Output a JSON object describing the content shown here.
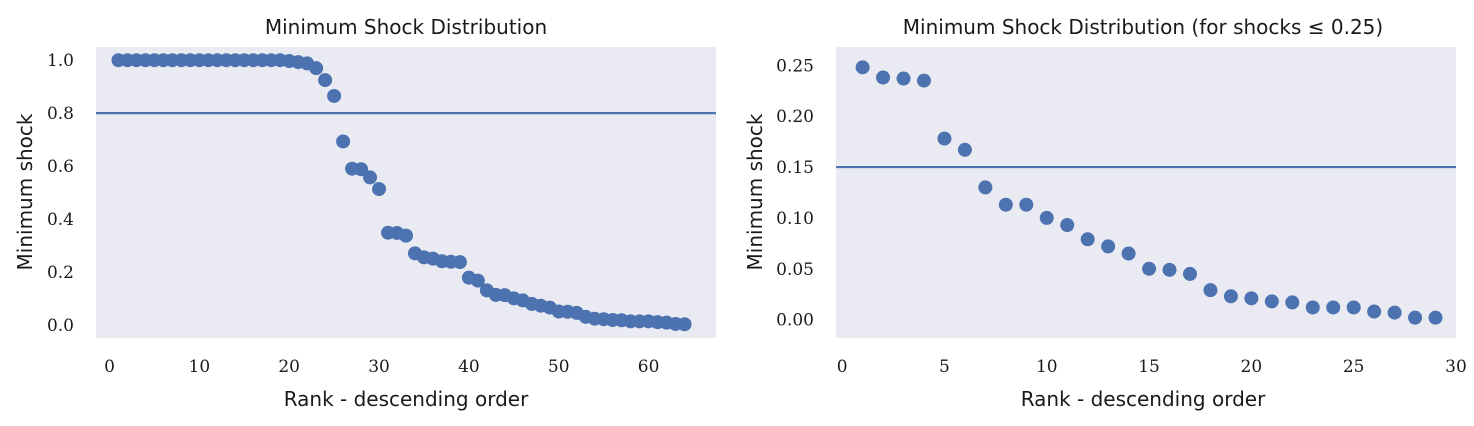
{
  "colors": {
    "plot_background": "#eaeaf2",
    "marker": "#4c72b0",
    "threshold_line": "#4c72b0",
    "text": "#1a1a1a"
  },
  "chart_data": [
    {
      "type": "scatter",
      "title": "Minimum Shock Distribution",
      "xlabel": "Rank - descending order",
      "ylabel": "Minimum shock",
      "xlim": [
        -1.5,
        67.5
      ],
      "ylim": [
        -0.05,
        1.05
      ],
      "xticks": [
        0,
        10,
        20,
        30,
        40,
        50,
        60
      ],
      "yticks": [
        0.0,
        0.2,
        0.4,
        0.6,
        0.8,
        1.0
      ],
      "ytick_labels": [
        "0.0",
        "0.2",
        "0.4",
        "0.6",
        "0.8",
        "1.0"
      ],
      "grid": false,
      "hline": 0.8,
      "points": [
        {
          "x": 1,
          "y": 1.0
        },
        {
          "x": 2,
          "y": 1.0
        },
        {
          "x": 3,
          "y": 1.0
        },
        {
          "x": 4,
          "y": 1.0
        },
        {
          "x": 5,
          "y": 1.0
        },
        {
          "x": 6,
          "y": 1.0
        },
        {
          "x": 7,
          "y": 1.0
        },
        {
          "x": 8,
          "y": 1.0
        },
        {
          "x": 9,
          "y": 1.0
        },
        {
          "x": 10,
          "y": 1.0
        },
        {
          "x": 11,
          "y": 1.0
        },
        {
          "x": 12,
          "y": 1.0
        },
        {
          "x": 13,
          "y": 1.0
        },
        {
          "x": 14,
          "y": 1.0
        },
        {
          "x": 15,
          "y": 1.0
        },
        {
          "x": 16,
          "y": 1.0
        },
        {
          "x": 17,
          "y": 1.0
        },
        {
          "x": 18,
          "y": 1.0
        },
        {
          "x": 19,
          "y": 1.0
        },
        {
          "x": 20,
          "y": 0.997
        },
        {
          "x": 21,
          "y": 0.993
        },
        {
          "x": 22,
          "y": 0.988
        },
        {
          "x": 23,
          "y": 0.97
        },
        {
          "x": 24,
          "y": 0.925
        },
        {
          "x": 25,
          "y": 0.865
        },
        {
          "x": 26,
          "y": 0.693
        },
        {
          "x": 27,
          "y": 0.59
        },
        {
          "x": 28,
          "y": 0.588
        },
        {
          "x": 29,
          "y": 0.557
        },
        {
          "x": 30,
          "y": 0.513
        },
        {
          "x": 31,
          "y": 0.348
        },
        {
          "x": 32,
          "y": 0.347
        },
        {
          "x": 33,
          "y": 0.337
        },
        {
          "x": 34,
          "y": 0.27
        },
        {
          "x": 35,
          "y": 0.255
        },
        {
          "x": 36,
          "y": 0.25
        },
        {
          "x": 37,
          "y": 0.24
        },
        {
          "x": 38,
          "y": 0.238
        },
        {
          "x": 39,
          "y": 0.237
        },
        {
          "x": 40,
          "y": 0.178
        },
        {
          "x": 41,
          "y": 0.167
        },
        {
          "x": 42,
          "y": 0.13
        },
        {
          "x": 43,
          "y": 0.113
        },
        {
          "x": 44,
          "y": 0.112
        },
        {
          "x": 45,
          "y": 0.1
        },
        {
          "x": 46,
          "y": 0.092
        },
        {
          "x": 47,
          "y": 0.079
        },
        {
          "x": 48,
          "y": 0.072
        },
        {
          "x": 49,
          "y": 0.065
        },
        {
          "x": 50,
          "y": 0.05
        },
        {
          "x": 51,
          "y": 0.049
        },
        {
          "x": 52,
          "y": 0.045
        },
        {
          "x": 53,
          "y": 0.03
        },
        {
          "x": 54,
          "y": 0.023
        },
        {
          "x": 55,
          "y": 0.021
        },
        {
          "x": 56,
          "y": 0.018
        },
        {
          "x": 57,
          "y": 0.017
        },
        {
          "x": 58,
          "y": 0.013
        },
        {
          "x": 59,
          "y": 0.013
        },
        {
          "x": 60,
          "y": 0.013
        },
        {
          "x": 61,
          "y": 0.01
        },
        {
          "x": 62,
          "y": 0.008
        },
        {
          "x": 63,
          "y": 0.003
        },
        {
          "x": 64,
          "y": 0.002
        }
      ]
    },
    {
      "type": "scatter",
      "title": "Minimum Shock Distribution (for shocks ≤ 0.25)",
      "xlabel": "Rank - descending order",
      "ylabel": "Minimum shock",
      "xlim": [
        -0.3,
        30.0
      ],
      "ylim": [
        -0.018,
        0.268
      ],
      "xticks": [
        0,
        5,
        10,
        15,
        20,
        25,
        30
      ],
      "yticks": [
        0.0,
        0.05,
        0.1,
        0.15,
        0.2,
        0.25
      ],
      "ytick_labels": [
        "0.00",
        "0.05",
        "0.10",
        "0.15",
        "0.20",
        "0.25"
      ],
      "grid": false,
      "hline": 0.15,
      "points": [
        {
          "x": 1,
          "y": 0.248
        },
        {
          "x": 2,
          "y": 0.238
        },
        {
          "x": 3,
          "y": 0.237
        },
        {
          "x": 4,
          "y": 0.235
        },
        {
          "x": 5,
          "y": 0.178
        },
        {
          "x": 6,
          "y": 0.167
        },
        {
          "x": 7,
          "y": 0.13
        },
        {
          "x": 8,
          "y": 0.113
        },
        {
          "x": 9,
          "y": 0.113
        },
        {
          "x": 10,
          "y": 0.1
        },
        {
          "x": 11,
          "y": 0.093
        },
        {
          "x": 12,
          "y": 0.079
        },
        {
          "x": 13,
          "y": 0.072
        },
        {
          "x": 14,
          "y": 0.065
        },
        {
          "x": 15,
          "y": 0.05
        },
        {
          "x": 16,
          "y": 0.049
        },
        {
          "x": 17,
          "y": 0.045
        },
        {
          "x": 18,
          "y": 0.029
        },
        {
          "x": 19,
          "y": 0.023
        },
        {
          "x": 20,
          "y": 0.021
        },
        {
          "x": 21,
          "y": 0.018
        },
        {
          "x": 22,
          "y": 0.017
        },
        {
          "x": 23,
          "y": 0.012
        },
        {
          "x": 24,
          "y": 0.012
        },
        {
          "x": 25,
          "y": 0.012
        },
        {
          "x": 26,
          "y": 0.008
        },
        {
          "x": 27,
          "y": 0.007
        },
        {
          "x": 28,
          "y": 0.002
        },
        {
          "x": 29,
          "y": 0.002
        }
      ]
    }
  ]
}
